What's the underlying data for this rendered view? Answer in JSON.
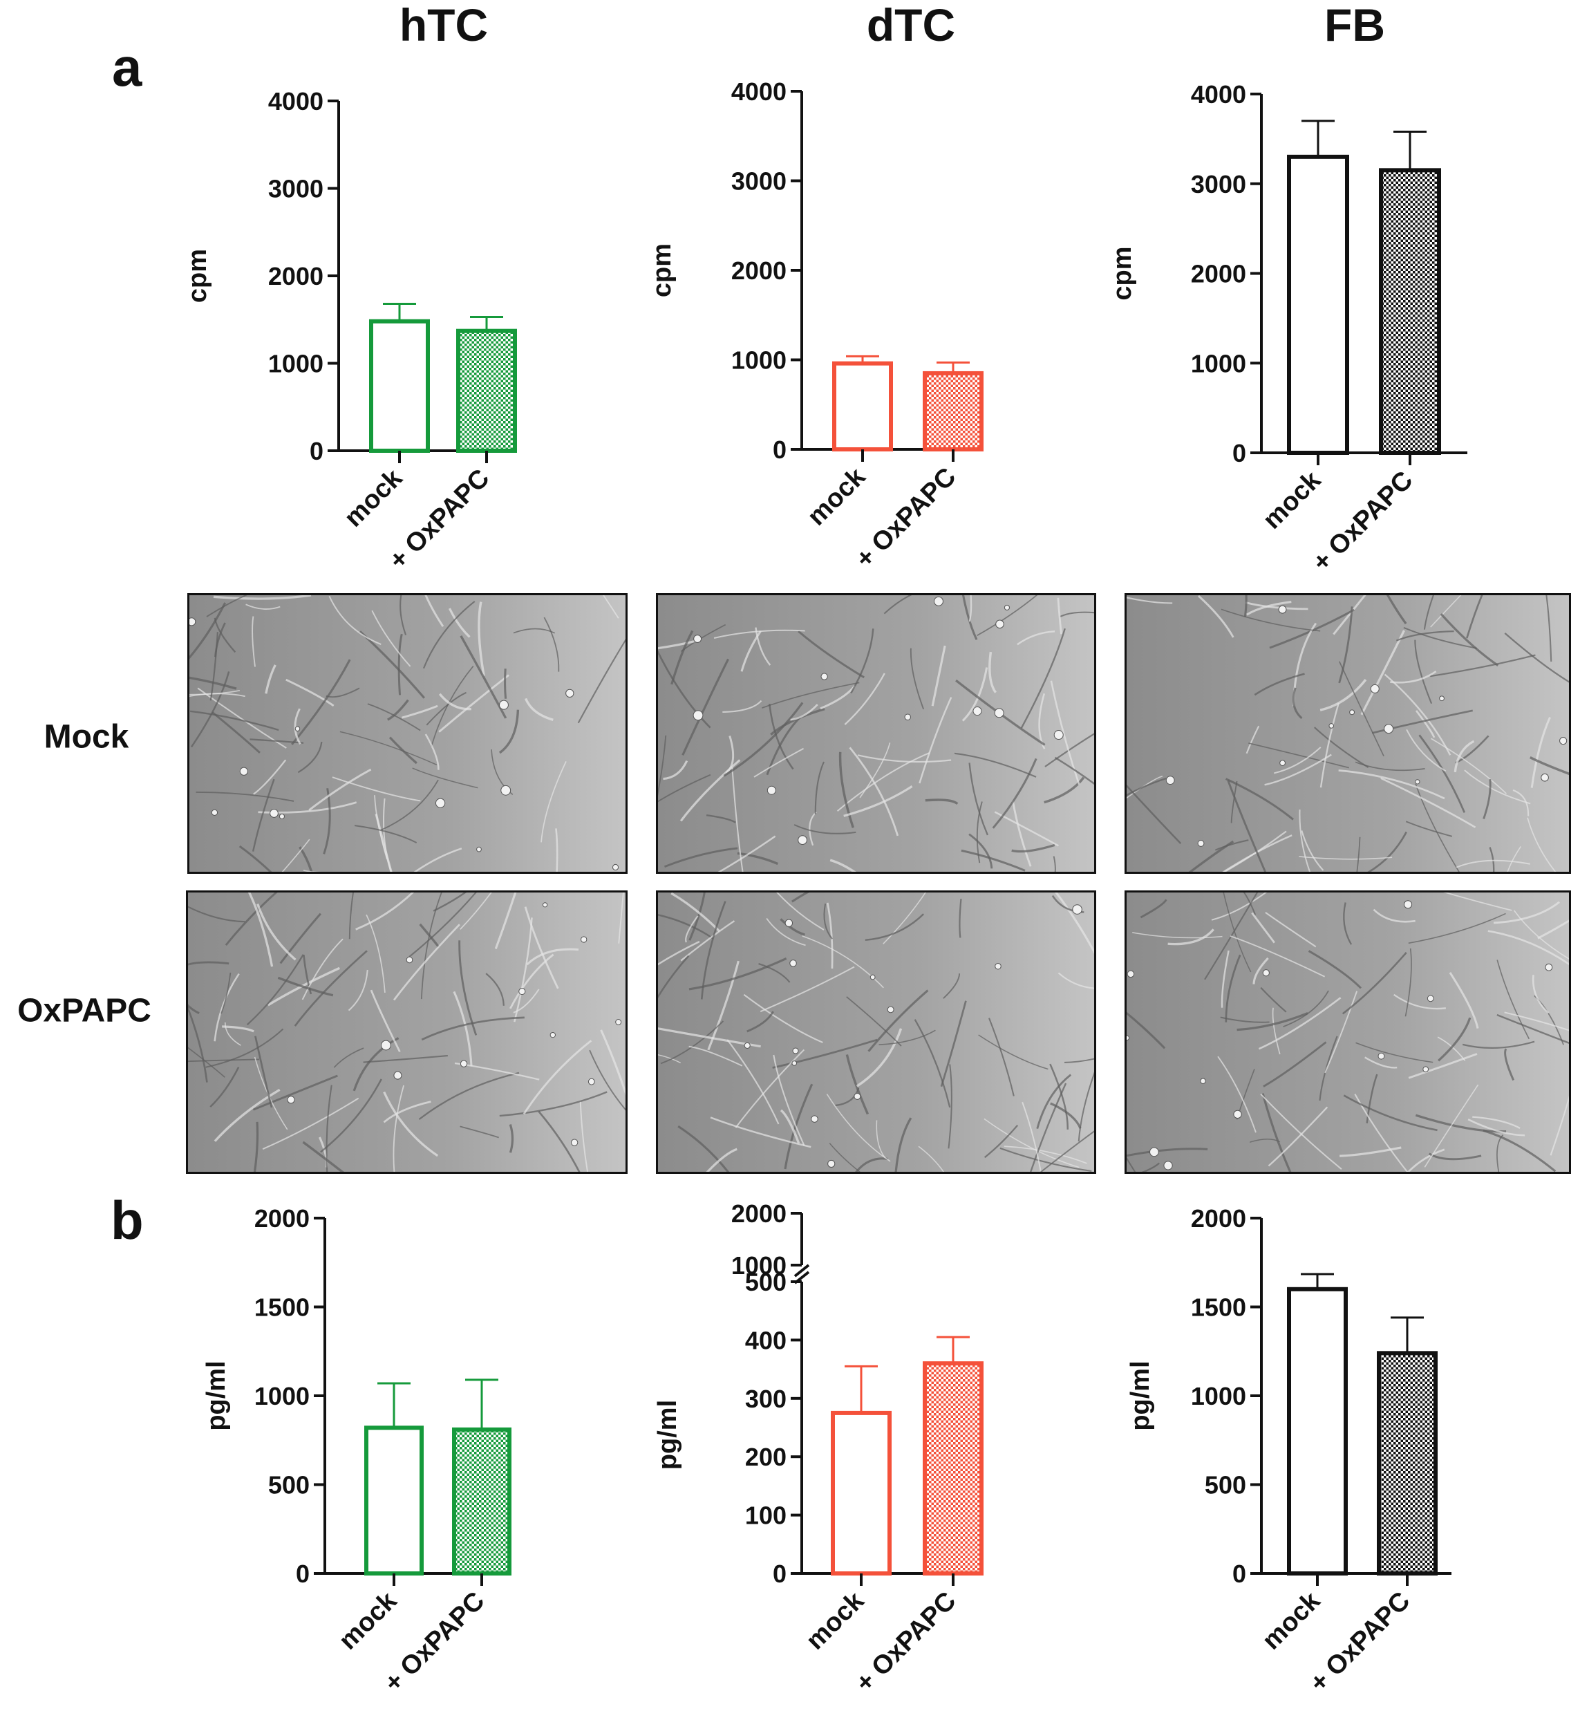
{
  "columns": [
    {
      "title": "hTC",
      "color": "#159a3b"
    },
    {
      "title": "dTC",
      "color": "#f4513a"
    },
    {
      "title": "FB",
      "color": "#111111"
    }
  ],
  "panels": {
    "a": "a",
    "b": "b"
  },
  "row_labels": {
    "mock": "Mock",
    "oxpapc": "OxPAPC"
  },
  "micrographs": [
    {
      "row": "Mock",
      "column": "hTC"
    },
    {
      "row": "Mock",
      "column": "dTC"
    },
    {
      "row": "Mock",
      "column": "FB"
    },
    {
      "row": "OxPAPC",
      "column": "hTC"
    },
    {
      "row": "OxPAPC",
      "column": "dTC"
    },
    {
      "row": "OxPAPC",
      "column": "FB"
    }
  ],
  "chart_data": [
    {
      "panel": "a",
      "column": "hTC",
      "type": "bar",
      "ylabel": "cpm",
      "categories": [
        "mock",
        "+ OxPAPC"
      ],
      "values": [
        1480,
        1370
      ],
      "errors": [
        200,
        160
      ],
      "ylim": [
        0,
        4000
      ],
      "yticks": [
        "0",
        "1000",
        "2000",
        "3000",
        "4000"
      ],
      "fill": [
        "open",
        "hatched"
      ],
      "color": "#159a3b",
      "grid": false,
      "legend": "none"
    },
    {
      "panel": "a",
      "column": "dTC",
      "type": "bar",
      "ylabel": "cpm",
      "categories": [
        "mock",
        "+ OxPAPC"
      ],
      "values": [
        960,
        850
      ],
      "errors": [
        80,
        120
      ],
      "ylim": [
        0,
        4000
      ],
      "yticks": [
        "0",
        "1000",
        "2000",
        "3000",
        "4000"
      ],
      "fill": [
        "open",
        "hatched"
      ],
      "color": "#f4513a",
      "grid": false,
      "legend": "none"
    },
    {
      "panel": "a",
      "column": "FB",
      "type": "bar",
      "ylabel": "cpm",
      "categories": [
        "mock",
        "+ OxPAPC"
      ],
      "values": [
        3300,
        3150
      ],
      "errors": [
        400,
        430
      ],
      "ylim": [
        0,
        4000
      ],
      "yticks": [
        "0",
        "1000",
        "2000",
        "3000",
        "4000"
      ],
      "fill": [
        "open",
        "hatched"
      ],
      "color": "#111111",
      "grid": false,
      "legend": "none"
    },
    {
      "panel": "b",
      "column": "hTC",
      "type": "bar",
      "ylabel": "pg/ml",
      "categories": [
        "mock",
        "+ OxPAPC"
      ],
      "values": [
        820,
        810
      ],
      "errors": [
        250,
        280
      ],
      "ylim": [
        0,
        2000
      ],
      "yticks": [
        "0",
        "500",
        "1000",
        "1500",
        "2000"
      ],
      "fill": [
        "open",
        "hatched"
      ],
      "color": "#159a3b",
      "grid": false,
      "legend": "none"
    },
    {
      "panel": "b",
      "column": "dTC",
      "type": "bar",
      "ylabel": "pg/ml",
      "categories": [
        "mock",
        "+ OxPAPC"
      ],
      "values": [
        275,
        360
      ],
      "errors": [
        80,
        45
      ],
      "ylim": [
        0,
        500
      ],
      "axis_break": [
        500,
        1000
      ],
      "ylim_upper": [
        1000,
        2000
      ],
      "yticks": [
        "0",
        "100",
        "200",
        "300",
        "400",
        "500"
      ],
      "yticks_upper": [
        "1000",
        "2000"
      ],
      "fill": [
        "open",
        "hatched"
      ],
      "color": "#f4513a",
      "grid": false,
      "legend": "none"
    },
    {
      "panel": "b",
      "column": "FB",
      "type": "bar",
      "ylabel": "pg/ml",
      "categories": [
        "mock",
        "+ OxPAPC"
      ],
      "values": [
        1600,
        1240
      ],
      "errors": [
        85,
        200
      ],
      "ylim": [
        0,
        2000
      ],
      "yticks": [
        "0",
        "500",
        "1000",
        "1500",
        "2000"
      ],
      "fill": [
        "open",
        "hatched"
      ],
      "color": "#111111",
      "grid": false,
      "legend": "none"
    }
  ]
}
